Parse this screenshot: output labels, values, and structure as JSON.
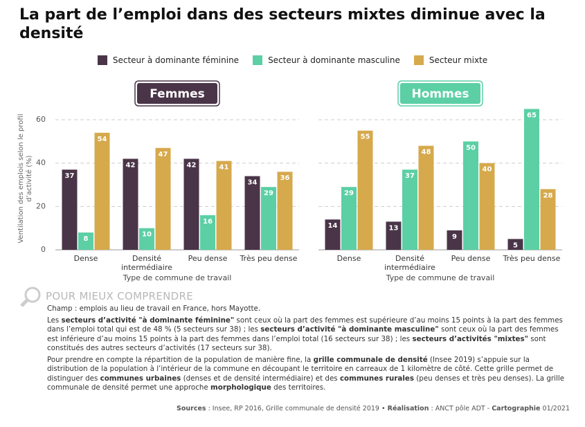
{
  "title": "La part de l’emploi dans des secteurs mixtes diminue avec la densité",
  "chart_data": [
    {
      "type": "bar",
      "title": "Femmes",
      "title_color": "#4a3548",
      "categories": [
        "Dense",
        "Densité intermédiaire",
        "Peu dense",
        "Très peu dense"
      ],
      "x_label": "Type de commune de travail",
      "y_label": "Ventilation des emplois selon le profil d’activité (%)",
      "ylim": [
        0,
        68
      ],
      "yticks": [
        0,
        20,
        40,
        60
      ],
      "grid": true,
      "legend": "top",
      "series": [
        {
          "name": "Secteur à dominante féminine",
          "color": "#4a3548",
          "values": [
            37,
            42,
            42,
            34
          ]
        },
        {
          "name": "Secteur à dominante masculine",
          "color": "#5ccfa5",
          "values": [
            8,
            10,
            16,
            29
          ]
        },
        {
          "name": "Secteur mixte",
          "color": "#d6a94c",
          "values": [
            54,
            47,
            41,
            36
          ]
        }
      ]
    },
    {
      "type": "bar",
      "title": "Hommes",
      "title_color": "#5ccfa5",
      "categories": [
        "Dense",
        "Densité intermédiaire",
        "Peu dense",
        "Très peu dense"
      ],
      "x_label": "Type de commune de travail",
      "ylim": [
        0,
        68
      ],
      "grid": true,
      "series": [
        {
          "color": "#4a3548",
          "values": [
            14,
            13,
            9,
            5
          ]
        },
        {
          "color": "#5ccfa5",
          "values": [
            29,
            37,
            50,
            65
          ]
        },
        {
          "color": "#d6a94c",
          "values": [
            55,
            48,
            40,
            28
          ]
        }
      ]
    }
  ],
  "notes": {
    "heading": "POUR MIEUX COMPRENDRE",
    "paragraphs": [
      [
        {
          "text": "Champ : emplois au lieu de travail en France, hors Mayotte."
        }
      ],
      [
        {
          "text": "Les "
        },
        {
          "text": "secteurs d’activité \"à dominante féminine\"",
          "bold": true
        },
        {
          "text": " sont ceux où la part des femmes est supérieure d’au moins 15 points à la part des femmes dans l’emploi total qui est de 48 % (5 secteurs sur 38) ; les "
        },
        {
          "text": "secteurs d’activité \"à dominante masculine\"",
          "bold": true
        },
        {
          "text": " sont ceux où la part des femmes est inférieure d’au moins 15 points à la part des femmes dans l’emploi total (16 secteurs sur 38) ; les "
        },
        {
          "text": "secteurs d’activités \"mixtes\"",
          "bold": true
        },
        {
          "text": " sont constitués des autres secteurs d’activités (17 secteurs sur 38)."
        }
      ],
      [
        {
          "text": "Pour prendre en compte la répartition de la population de manière fine, la "
        },
        {
          "text": "grille communale de densité",
          "bold": true
        },
        {
          "text": " (Insee 2019) s’appuie sur la distribution de la population à l’intérieur de la commune en découpant le territoire en carreaux de 1 kilomètre de côté. Cette grille permet de distinguer des "
        },
        {
          "text": "communes urbaines",
          "bold": true
        },
        {
          "text": " (denses et de densité intermédiaire) et des "
        },
        {
          "text": "communes rurales",
          "bold": true
        },
        {
          "text": " (peu denses et très peu denses). La grille communale de densité permet une approche "
        },
        {
          "text": "morphologique",
          "bold": true
        },
        {
          "text": " des territoires."
        }
      ]
    ]
  },
  "sources": [
    {
      "text": "Sources",
      "bold": true
    },
    {
      "text": " : Insee, RP 2016, Grille communale de densité 2019 • "
    },
    {
      "text": "Réalisation",
      "bold": true
    },
    {
      "text": " : ANCT pôle ADT - "
    },
    {
      "text": "Cartographie",
      "bold": true
    },
    {
      "text": " 01/2021"
    }
  ]
}
